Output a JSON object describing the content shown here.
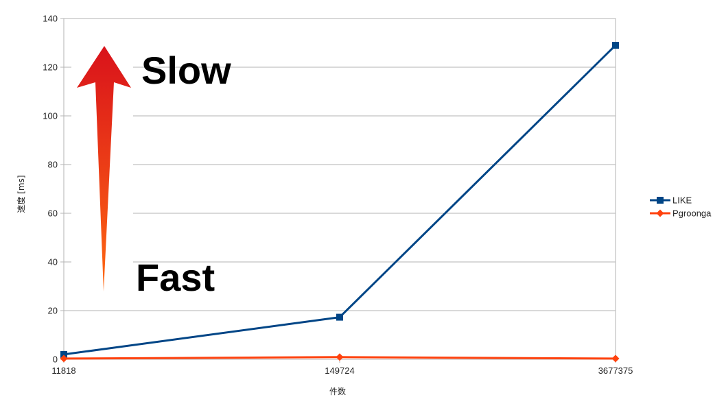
{
  "chart_data": {
    "type": "line",
    "x": [
      "11818",
      "149724",
      "3677375"
    ],
    "series": [
      {
        "name": "LIKE",
        "values": [
          2,
          17.3,
          129
        ],
        "color": "#004586",
        "marker": "square"
      },
      {
        "name": "Pgroonga",
        "values": [
          0.3,
          0.9,
          0.3
        ],
        "color": "#ff420e",
        "marker": "diamond"
      }
    ],
    "xlabel": "件数",
    "ylabel": "速度 [ms]",
    "ylim": [
      0,
      140
    ],
    "yticks": [
      0,
      20,
      40,
      60,
      80,
      100,
      120,
      140
    ],
    "grid": true,
    "legend": "right",
    "annotations": [
      {
        "text": "Slow",
        "position": "top-left"
      },
      {
        "text": "Fast",
        "position": "bottom-left"
      }
    ],
    "arrow": {
      "direction": "up",
      "color_top": "#d9121b",
      "color_bottom": "#ff6a12"
    }
  }
}
